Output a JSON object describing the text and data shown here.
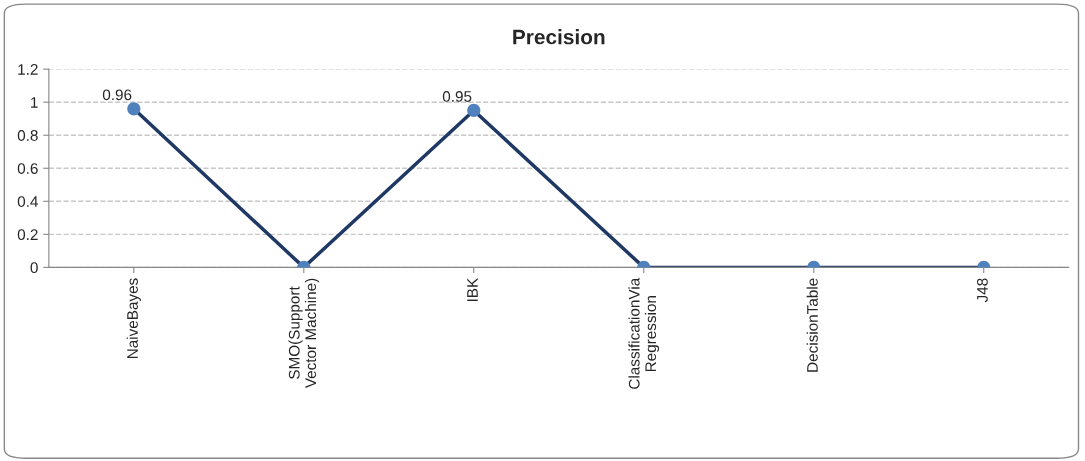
{
  "chart_data": {
    "type": "line",
    "title": "Precision",
    "categories": [
      "NaiveBayes",
      "SMO(Support\nVector Machine)",
      "IBK",
      "ClassificationVia\nRegression",
      "DecisionTable",
      "J48"
    ],
    "series": [
      {
        "color": "#1f3864",
        "colors": [
          "#4f81bd",
          "#4f81bd",
          "#4f81bd",
          "#4f81bd",
          "#4f81bd",
          "#4f81bd"
        ],
        "values": [
          0.96,
          0,
          0.95,
          0,
          0,
          0
        ],
        "value_labels": [
          "0.96",
          null,
          "0.95",
          null,
          null,
          null
        ]
      }
    ],
    "ylim": [
      0,
      1.2
    ],
    "yticks": [
      0,
      0.2,
      0.4,
      0.6,
      0.8,
      1,
      1.2
    ],
    "grid": "y",
    "marker": "circle",
    "legend": false
  }
}
